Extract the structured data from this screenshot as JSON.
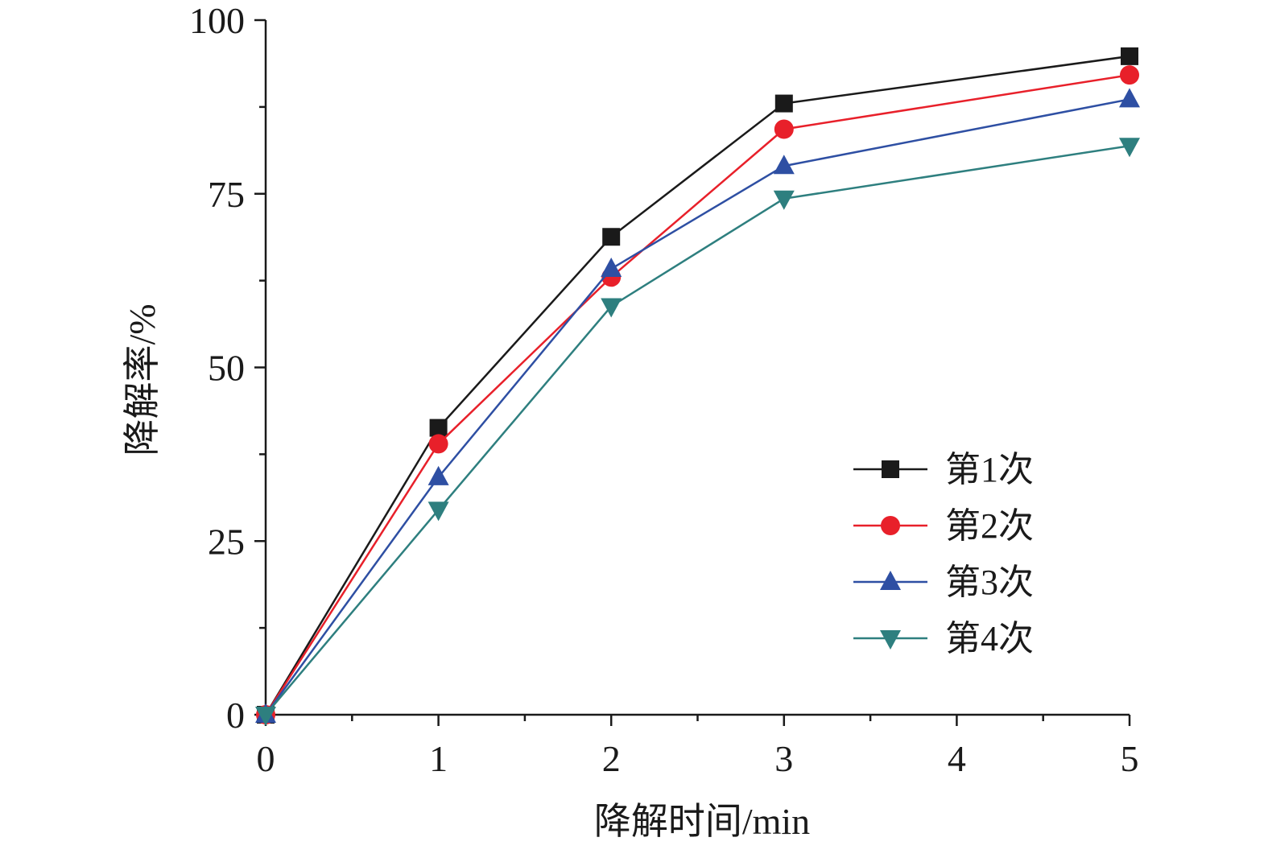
{
  "chart_data": {
    "type": "line",
    "xlabel": "降解时间/min",
    "ylabel": "降解率/%",
    "xlim": [
      0,
      5
    ],
    "ylim": [
      0,
      100
    ],
    "x_major_ticks": [
      0,
      1,
      2,
      3,
      4,
      5
    ],
    "x_minor_ticks": [
      0.5,
      1.5,
      2.5,
      3.5,
      4.5
    ],
    "y_major_ticks": [
      0,
      25,
      50,
      75,
      100
    ],
    "y_minor_ticks": [
      12.5,
      37.5,
      62.5,
      87.5
    ],
    "x_tick_labels": [
      "0",
      "1",
      "2",
      "3",
      "4",
      "5"
    ],
    "y_tick_labels": [
      "0",
      "25",
      "50",
      "75",
      "100"
    ],
    "grid": false,
    "legend_position": "right-middle",
    "x": [
      0,
      1,
      2,
      3,
      5
    ],
    "series": [
      {
        "name": "第1次",
        "marker": "square",
        "color": "#1a1a1a",
        "values": [
          0,
          41.3,
          68.8,
          88.0,
          94.8
        ]
      },
      {
        "name": "第2次",
        "marker": "circle",
        "color": "#e8202a",
        "values": [
          0,
          39.0,
          63.0,
          84.3,
          92.1
        ]
      },
      {
        "name": "第3次",
        "marker": "triangle-up",
        "color": "#2e4fa3",
        "values": [
          0,
          34.2,
          64.2,
          79.0,
          88.6
        ]
      },
      {
        "name": "第4次",
        "marker": "triangle-down",
        "color": "#2e7f7f",
        "values": [
          0,
          29.5,
          58.8,
          74.3,
          81.9
        ]
      }
    ]
  }
}
